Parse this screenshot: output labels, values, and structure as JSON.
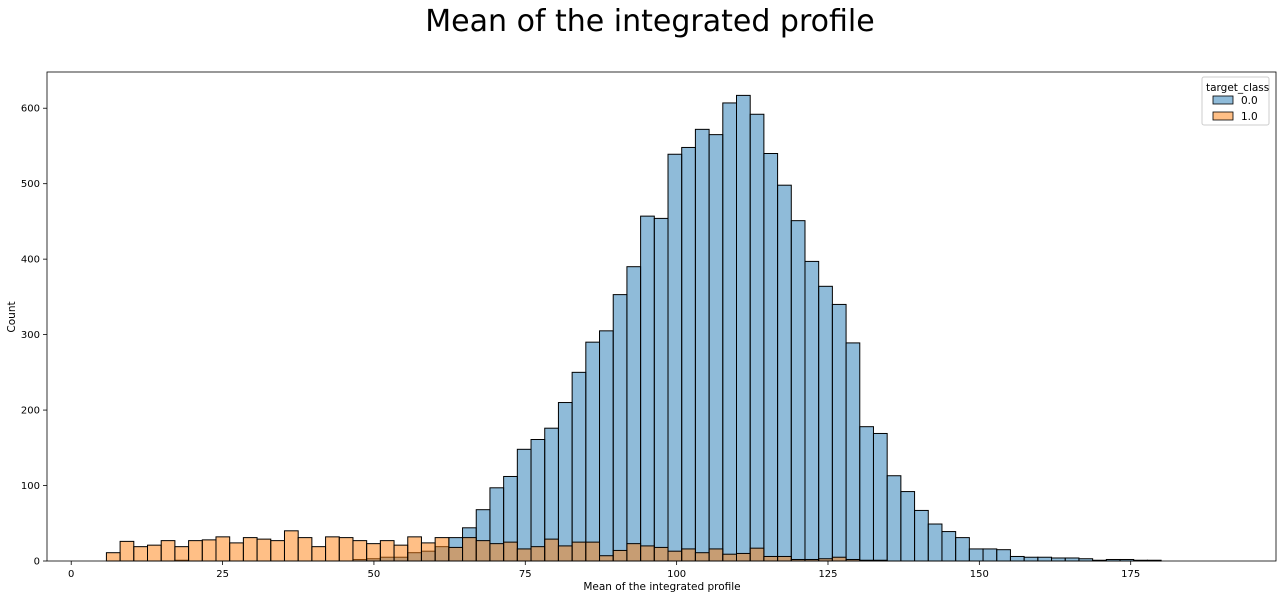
{
  "chart_data": {
    "type": "bar",
    "title": "Mean of the integrated profile",
    "xlabel": "Mean of the integrated profile",
    "ylabel": "Count",
    "xlim": [
      -4,
      199
    ],
    "ylim": [
      0,
      648
    ],
    "xticks": [
      0,
      25,
      50,
      75,
      100,
      125,
      150,
      175
    ],
    "yticks": [
      0,
      100,
      200,
      300,
      400,
      500,
      600
    ],
    "bin_start": 5.8125,
    "bin_width": 2.2625,
    "grid": false,
    "legend": {
      "title": "target_class",
      "placement": "top-right",
      "entries": [
        {
          "label": "0.0",
          "color": "#1f77b4"
        },
        {
          "label": "1.0",
          "color": "#ff7f0e"
        }
      ]
    },
    "series": [
      {
        "name": "0.0",
        "color": "#1f77b4",
        "values": [
          0,
          0,
          0,
          0,
          0,
          1,
          0,
          0,
          0,
          0,
          0,
          0,
          0,
          0,
          0,
          0,
          0,
          0,
          2,
          3,
          5,
          5,
          11,
          13,
          19,
          31,
          44,
          68,
          97,
          112,
          148,
          161,
          176,
          210,
          250,
          290,
          305,
          353,
          390,
          457,
          454,
          539,
          548,
          572,
          565,
          607,
          617,
          592,
          540,
          498,
          451,
          397,
          364,
          340,
          289,
          178,
          169,
          113,
          92,
          67,
          49,
          39,
          31,
          16,
          16,
          15,
          6,
          5,
          5,
          4,
          4,
          3,
          1,
          2,
          2,
          1,
          1
        ]
      },
      {
        "name": "1.0",
        "color": "#ff7f0e",
        "values": [
          11,
          26,
          19,
          21,
          27,
          19,
          27,
          28,
          32,
          24,
          31,
          29,
          27,
          40,
          31,
          19,
          32,
          31,
          27,
          23,
          27,
          21,
          32,
          24,
          31,
          18,
          31,
          27,
          23,
          25,
          16,
          19,
          29,
          20,
          25,
          25,
          7,
          14,
          23,
          20,
          18,
          13,
          16,
          11,
          16,
          9,
          10,
          17,
          6,
          6,
          2,
          2,
          3,
          5,
          2,
          1,
          1,
          0,
          0,
          0,
          0,
          0,
          0,
          0,
          0,
          0,
          0,
          0,
          0,
          0,
          0,
          0,
          0,
          0,
          0,
          0,
          0
        ]
      }
    ]
  }
}
